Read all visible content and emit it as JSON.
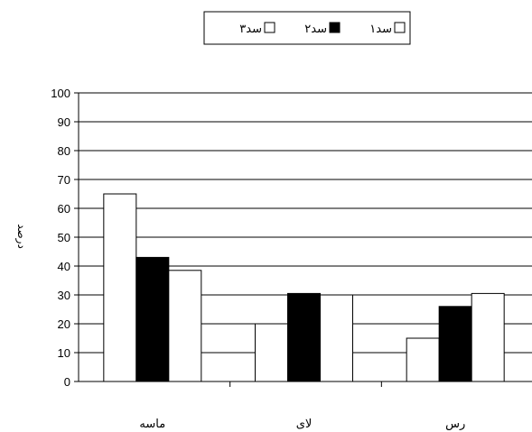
{
  "chart_data": {
    "type": "bar",
    "categories": [
      "ماسه",
      "لای",
      "رس"
    ],
    "series": [
      {
        "name": "سد۱",
        "values": [
          65,
          20,
          15
        ]
      },
      {
        "name": "سد۲",
        "values": [
          43,
          30.5,
          26
        ]
      },
      {
        "name": "سد۳",
        "values": [
          38.5,
          30,
          30.5
        ]
      }
    ],
    "ylabel": "درصد",
    "ylim": [
      0,
      100
    ],
    "yticks": [
      0,
      10,
      20,
      30,
      40,
      50,
      60,
      70,
      80,
      90,
      100
    ],
    "grid": "horizontal",
    "legend_position": "top",
    "colors": [
      "#ffffff",
      "#000000",
      "#ffffff"
    ]
  }
}
